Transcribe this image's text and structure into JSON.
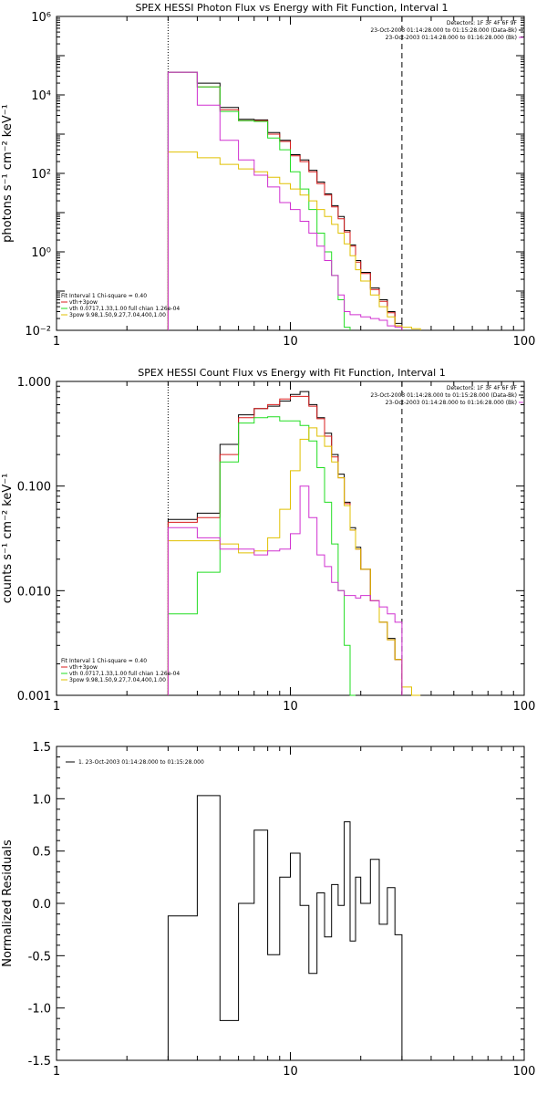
{
  "chart_data": [
    {
      "type": "line",
      "title": "SPEX HESSI Photon Flux vs Energy with Fit Function, Interval 1",
      "ylabel": "photons s⁻¹ cm⁻² keV⁻¹",
      "xscale": "log",
      "yscale": "log",
      "xlim": [
        1,
        100
      ],
      "ylim": [
        0.01,
        1000000
      ],
      "xticks": [
        "1",
        "10",
        "100"
      ],
      "yticks": [
        "10⁶",
        "10⁴",
        "10²",
        "10⁰",
        "10⁻²"
      ],
      "legend_top": [
        "Detectors: 1F 3F 4F 6F 9F",
        "23-Oct-2003 01:14:28.000 to 01:15:28.000 (Data-Bk)",
        "23-Oct-2003 01:14:28.000 to 01:16:28.000 (Bk)"
      ],
      "legend_bottom": [
        "Fit Interval 1    Chi-square = 0.40",
        "vth+3pow",
        "vth 0.0717,1.33,1.00  full chian 1.26e-04",
        "3pow 9.98,1.50,9.27,7.04,400,1.00"
      ],
      "edges": [
        3,
        4,
        5,
        6,
        7,
        8,
        9,
        10,
        11,
        12,
        13,
        14,
        15,
        16,
        17,
        18,
        19,
        20,
        22,
        24,
        26,
        28,
        30,
        33,
        36
      ],
      "vlines": [
        3,
        30
      ],
      "series": [
        {
          "name": "Data-Bk",
          "color": "#000000",
          "values": [
            38000,
            20000,
            4800,
            2400,
            2300,
            1100,
            700,
            300,
            220,
            120,
            60,
            30,
            15,
            8,
            3.5,
            1.5,
            0.6,
            0.3,
            0.12,
            0.06,
            0.03,
            0.015,
            null,
            null
          ]
        },
        {
          "name": "vth+3pow",
          "color": "#d81c1c",
          "values": [
            38000,
            16000,
            4200,
            2200,
            2200,
            1000,
            650,
            280,
            200,
            110,
            55,
            28,
            14,
            7,
            3.2,
            1.4,
            0.55,
            0.28,
            0.11,
            0.055,
            0.028,
            0.013,
            null,
            null
          ]
        },
        {
          "name": "vth",
          "color": "#22dd22",
          "values": [
            38000,
            16000,
            3800,
            2200,
            2100,
            800,
            400,
            110,
            40,
            12,
            3,
            1,
            0.25,
            0.06,
            0.012,
            null,
            null,
            null,
            null,
            null,
            null,
            null,
            null,
            null
          ]
        },
        {
          "name": "3pow",
          "color": "#e0c000",
          "values": [
            350,
            250,
            170,
            130,
            110,
            80,
            55,
            40,
            28,
            20,
            12,
            8,
            5,
            3,
            1.6,
            0.8,
            0.35,
            0.18,
            0.08,
            0.04,
            0.022,
            0.013,
            0.012,
            0.011
          ]
        },
        {
          "name": "Bk",
          "color": "#d030d0",
          "values": [
            38000,
            5500,
            700,
            220,
            90,
            45,
            18,
            12,
            6,
            3,
            1.4,
            0.6,
            0.25,
            0.08,
            0.03,
            0.025,
            0.025,
            0.022,
            0.02,
            0.018,
            0.013,
            0.012,
            null,
            null
          ]
        }
      ]
    },
    {
      "type": "line",
      "title": "SPEX HESSI Count Flux vs Energy with Fit Function, Interval 1",
      "ylabel": "counts s⁻¹ cm⁻² keV⁻¹",
      "xscale": "log",
      "yscale": "log",
      "xlim": [
        1,
        100
      ],
      "ylim": [
        0.001,
        1.0
      ],
      "xticks": [
        "1",
        "10",
        "100"
      ],
      "yticks": [
        "1.000",
        "0.100",
        "0.010",
        "0.001"
      ],
      "legend_top": [
        "Detectors: 1F 3F 4F 6F 9F",
        "23-Oct-2003 01:14:28.000 to 01:15:28.000 (Data-Bk)",
        "23-Oct-2003 01:14:28.000 to 01:16:28.000 (Bk)"
      ],
      "legend_bottom": [
        "Fit Interval 1    Chi-square = 0.40",
        "vth+3pow",
        "vth 0.0717,1.33,1.00  full chian 1.26e-04",
        "3pow 9.98,1.50,9.27,7.04,400,1.00"
      ],
      "edges": [
        3,
        4,
        5,
        6,
        7,
        8,
        9,
        10,
        11,
        12,
        13,
        14,
        15,
        16,
        17,
        18,
        19,
        20,
        22,
        24,
        26,
        28,
        30,
        33,
        36
      ],
      "vlines": [
        3,
        30
      ],
      "series": [
        {
          "name": "Data-Bk",
          "color": "#000000",
          "values": [
            0.048,
            0.055,
            0.25,
            0.48,
            0.55,
            0.58,
            0.65,
            0.75,
            0.8,
            0.6,
            0.45,
            0.32,
            0.2,
            0.13,
            0.07,
            0.04,
            0.026,
            0.016,
            0.008,
            0.005,
            0.0035,
            0.0022,
            null,
            null
          ]
        },
        {
          "name": "vth+3pow",
          "color": "#d81c1c",
          "values": [
            0.045,
            0.05,
            0.2,
            0.45,
            0.55,
            0.6,
            0.68,
            0.72,
            0.72,
            0.58,
            0.44,
            0.3,
            0.19,
            0.12,
            0.068,
            0.038,
            0.025,
            0.016,
            0.008,
            0.005,
            0.0034,
            0.0022,
            null,
            null
          ]
        },
        {
          "name": "vth",
          "color": "#22dd22",
          "values": [
            0.006,
            0.015,
            0.17,
            0.4,
            0.45,
            0.46,
            0.42,
            0.42,
            0.38,
            0.27,
            0.15,
            0.07,
            0.028,
            0.01,
            0.003,
            0.0008,
            null,
            null,
            null,
            null,
            null,
            null,
            null,
            null
          ]
        },
        {
          "name": "3pow",
          "color": "#e0c000",
          "values": [
            0.03,
            0.03,
            0.028,
            0.023,
            0.024,
            0.032,
            0.06,
            0.14,
            0.28,
            0.36,
            0.3,
            0.24,
            0.17,
            0.12,
            0.065,
            0.038,
            0.025,
            0.016,
            0.008,
            0.005,
            0.0034,
            0.0022,
            0.0012,
            0.0009
          ]
        },
        {
          "name": "Bk",
          "color": "#d030d0",
          "values": [
            0.04,
            0.032,
            0.025,
            0.025,
            0.022,
            0.024,
            0.025,
            0.035,
            0.1,
            0.05,
            0.022,
            0.017,
            0.012,
            0.01,
            0.009,
            0.009,
            0.0085,
            0.009,
            0.008,
            0.007,
            0.006,
            0.005,
            null,
            null
          ]
        }
      ]
    },
    {
      "type": "line",
      "title": "",
      "ylabel": "Normalized Residuals",
      "xscale": "log",
      "yscale": "linear",
      "xlim": [
        1,
        100
      ],
      "ylim": [
        -1.5,
        1.5
      ],
      "xticks": [
        "1",
        "10",
        "100"
      ],
      "yticks": [
        "1.5",
        "1.0",
        "0.5",
        "0.0",
        "-0.5",
        "-1.0",
        "-1.5"
      ],
      "legend_top": [
        "1. 23-Oct-2003 01:14:28.000 to 01:15:28.000"
      ],
      "edges": [
        3,
        4,
        5,
        6,
        7,
        8,
        9,
        10,
        11,
        12,
        13,
        14,
        15,
        16,
        17,
        18,
        19,
        20,
        22,
        24,
        26,
        28,
        30
      ],
      "series": [
        {
          "name": "1. 23-Oct-2003 01:14:28.000 to 01:15:28.000",
          "color": "#000000",
          "values": [
            -0.12,
            1.03,
            -1.12,
            0.0,
            0.7,
            -0.49,
            0.25,
            0.48,
            -0.02,
            -0.67,
            0.1,
            -0.32,
            0.18,
            -0.02,
            0.78,
            -0.36,
            0.25,
            0.0,
            0.42,
            -0.2,
            0.15,
            -0.3
          ]
        }
      ]
    }
  ]
}
